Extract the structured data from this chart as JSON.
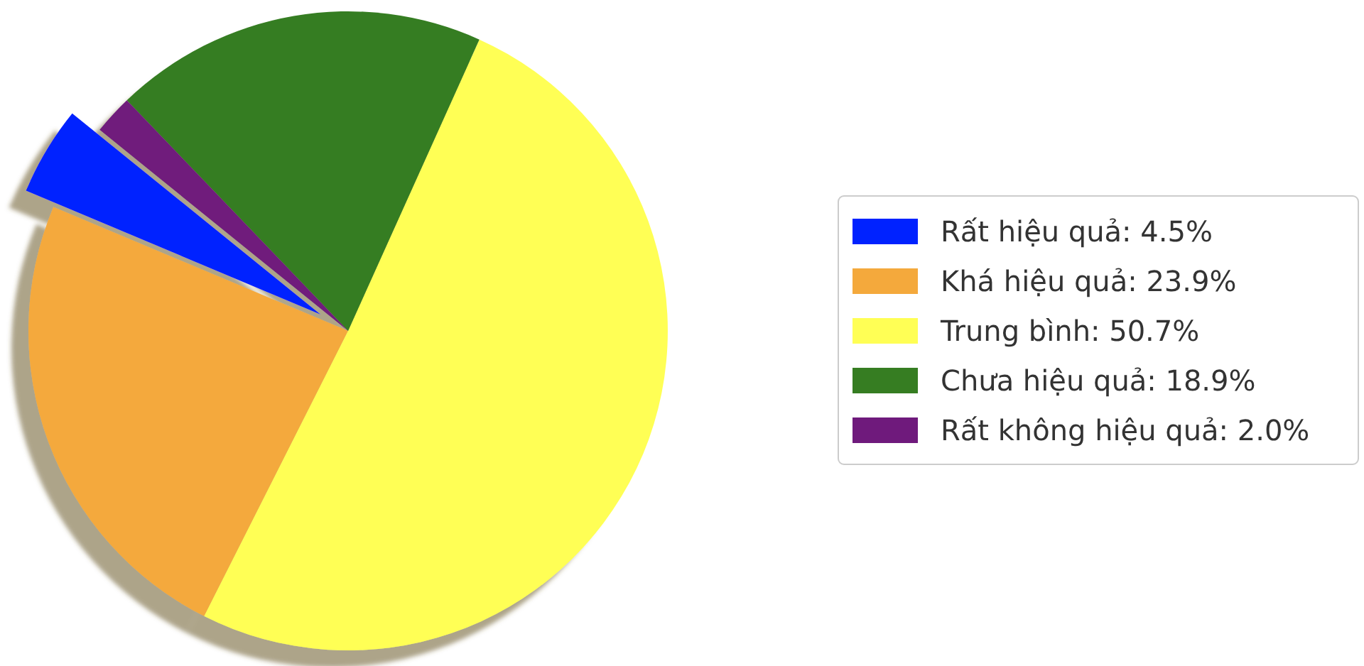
{
  "chart_data": {
    "type": "pie",
    "categories": [
      "Rất hiệu quả: 4.5%",
      "Khá hiệu quả: 23.9%",
      "Trung bình: 50.7%",
      "Chưa hiệu quả: 18.9%",
      "Rất không hiệu quả: 2.0%"
    ],
    "values": [
      4.5,
      23.9,
      50.7,
      18.9,
      2.0
    ],
    "colors": [
      "#0022ff",
      "#f4a93c",
      "#ffff55",
      "#367d22",
      "#6f1a7c"
    ],
    "legend": "right"
  }
}
